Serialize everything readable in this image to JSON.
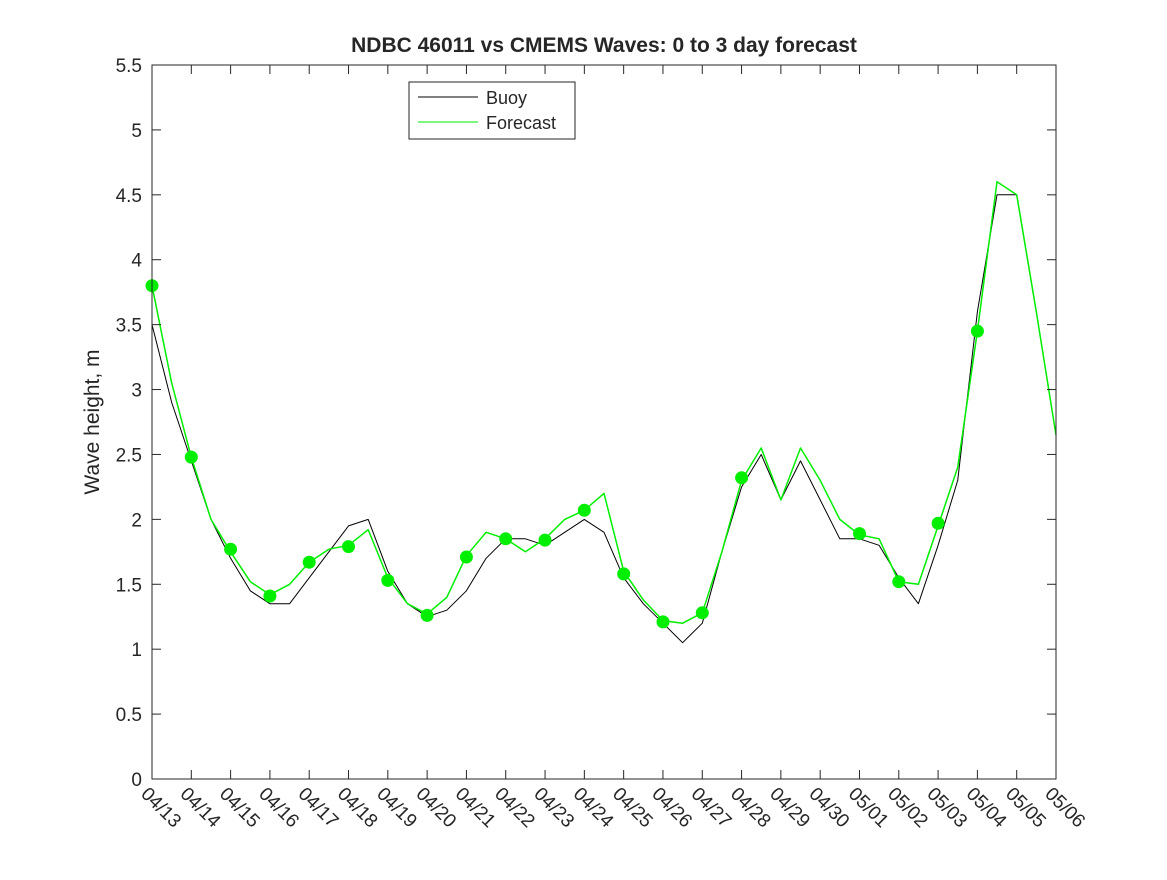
{
  "chart_data": {
    "type": "line",
    "title": "NDBC 46011 vs CMEMS Waves: 0 to 3 day forecast",
    "xlabel": "",
    "ylabel": "Wave height, m",
    "x_ticks": [
      "04/13",
      "04/14",
      "04/15",
      "04/16",
      "04/17",
      "04/18",
      "04/19",
      "04/20",
      "04/21",
      "04/22",
      "04/23",
      "04/24",
      "04/25",
      "04/26",
      "04/27",
      "04/28",
      "04/29",
      "04/30",
      "05/01",
      "05/02",
      "05/03",
      "05/04",
      "05/05",
      "05/06"
    ],
    "y_ticks": [
      "0",
      "0.5",
      "1",
      "1.5",
      "2",
      "2.5",
      "3",
      "3.5",
      "4",
      "4.5",
      "5",
      "5.5"
    ],
    "xlim": [
      "04/13",
      "05/06"
    ],
    "ylim": [
      0,
      5.5
    ],
    "grid": false,
    "legend_position": "top-left",
    "colors": {
      "buoy": "#000000",
      "forecast": "#00ee00"
    },
    "series": [
      {
        "name": "Buoy",
        "x": [
          "04/13",
          "04/13 12:00",
          "04/14",
          "04/14 12:00",
          "04/15",
          "04/15 12:00",
          "04/16",
          "04/16 12:00",
          "04/17",
          "04/17 12:00",
          "04/18",
          "04/18 12:00",
          "04/19",
          "04/19 12:00",
          "04/20",
          "04/20 12:00",
          "04/21",
          "04/21 12:00",
          "04/22",
          "04/22 12:00",
          "04/23",
          "04/23 12:00",
          "04/24",
          "04/24 12:00",
          "04/25",
          "04/25 12:00",
          "04/26",
          "04/26 12:00",
          "04/27",
          "04/27 12:00",
          "04/28",
          "04/28 12:00",
          "04/29",
          "04/29 12:00",
          "04/30",
          "04/30 12:00",
          "05/01",
          "05/01 12:00",
          "05/02",
          "05/02 12:00",
          "05/03",
          "05/03 12:00",
          "05/04",
          "05/04 12:00",
          "05/05",
          "05/05 12:00"
        ],
        "values": [
          3.5,
          2.9,
          2.45,
          2.0,
          1.7,
          1.45,
          1.35,
          1.35,
          1.55,
          1.75,
          1.95,
          2.0,
          1.6,
          1.35,
          1.25,
          1.3,
          1.45,
          1.7,
          1.85,
          1.85,
          1.8,
          1.9,
          2.0,
          1.9,
          1.55,
          1.35,
          1.2,
          1.05,
          1.2,
          1.75,
          2.25,
          2.5,
          2.15,
          2.45,
          2.15,
          1.85,
          1.85,
          1.8,
          1.55,
          1.35,
          1.8,
          2.3,
          3.6,
          4.5,
          4.5,
          3.6
        ]
      },
      {
        "name": "Forecast",
        "x": [
          "04/13",
          "04/13 12:00",
          "04/14",
          "04/14 12:00",
          "04/15",
          "04/15 12:00",
          "04/16",
          "04/16 12:00",
          "04/17",
          "04/17 12:00",
          "04/18",
          "04/18 12:00",
          "04/19",
          "04/19 12:00",
          "04/20",
          "04/20 12:00",
          "04/21",
          "04/21 12:00",
          "04/22",
          "04/22 12:00",
          "04/23",
          "04/23 12:00",
          "04/24",
          "04/24 12:00",
          "04/25",
          "04/25 12:00",
          "04/26",
          "04/26 12:00",
          "04/27",
          "04/27 12:00",
          "04/28",
          "04/28 12:00",
          "04/29",
          "04/29 12:00",
          "04/30",
          "04/30 12:00",
          "05/01",
          "05/01 12:00",
          "05/02",
          "05/02 12:00",
          "05/03",
          "05/03 12:00",
          "05/04",
          "05/04 12:00",
          "05/05",
          "05/05 12:00",
          "05/06"
        ],
        "values": [
          3.8,
          3.05,
          2.48,
          2.0,
          1.75,
          1.52,
          1.42,
          1.5,
          1.67,
          1.77,
          1.8,
          1.92,
          1.55,
          1.35,
          1.27,
          1.4,
          1.72,
          1.9,
          1.85,
          1.75,
          1.85,
          2.0,
          2.07,
          2.2,
          1.6,
          1.38,
          1.22,
          1.2,
          1.28,
          1.75,
          2.3,
          2.55,
          2.15,
          2.55,
          2.3,
          2.0,
          1.88,
          1.85,
          1.52,
          1.5,
          1.95,
          2.4,
          3.45,
          4.6,
          4.5,
          3.6,
          2.65
        ]
      }
    ],
    "markers": {
      "series": "Forecast",
      "x": [
        "04/13",
        "04/14",
        "04/15",
        "04/16",
        "04/17",
        "04/18",
        "04/19",
        "04/20",
        "04/21",
        "04/22",
        "04/23",
        "04/24",
        "04/25",
        "04/26",
        "04/27",
        "04/28",
        "05/01",
        "05/02",
        "05/03",
        "05/04"
      ],
      "values": [
        3.8,
        2.48,
        1.77,
        1.41,
        1.67,
        1.79,
        1.53,
        1.26,
        1.71,
        1.85,
        1.84,
        2.07,
        1.58,
        1.21,
        1.28,
        2.32,
        1.89,
        1.52,
        1.97,
        3.45
      ]
    }
  }
}
